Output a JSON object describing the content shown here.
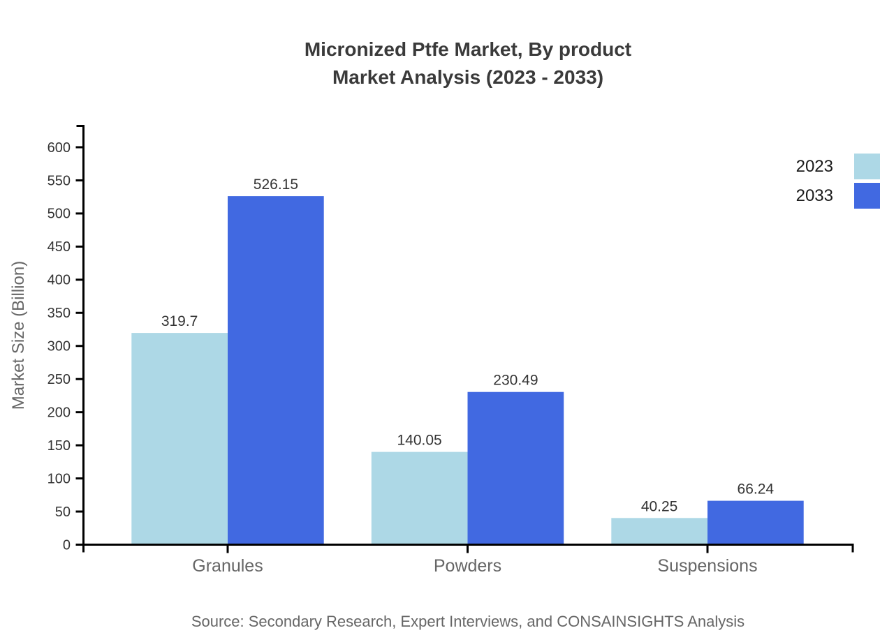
{
  "header": {
    "title_line1": "Micronized Ptfe Market, By product",
    "title_line2": "Market Analysis (2023 - 2033)"
  },
  "chart_data": {
    "type": "bar",
    "title": "Micronized Ptfe Market, By product Market Analysis (2023 - 2033)",
    "categories": [
      "Granules",
      "Powders",
      "Suspensions"
    ],
    "series": [
      {
        "name": "2023",
        "color": "#ADD8E6",
        "values": [
          319.7,
          140.05,
          40.25
        ]
      },
      {
        "name": "2033",
        "color": "#4169E1",
        "values": [
          526.15,
          230.49,
          66.24
        ]
      }
    ],
    "value_labels": [
      [
        "319.7",
        "140.05",
        "40.25"
      ],
      [
        "526.15",
        "230.49",
        "66.24"
      ]
    ],
    "xlabel": "",
    "ylabel": "Market Size (Billion)",
    "ylim": [
      0,
      600
    ],
    "ytick_step": 50,
    "grid": false,
    "legend_position": "top-right",
    "axis_color": "#000000",
    "tick_label_color": "#333333",
    "category_label_color": "#666666",
    "value_label_color": "#333333"
  },
  "footer": {
    "source": "Source: Secondary Research, Expert Interviews, and CONSAINSIGHTS Analysis"
  }
}
